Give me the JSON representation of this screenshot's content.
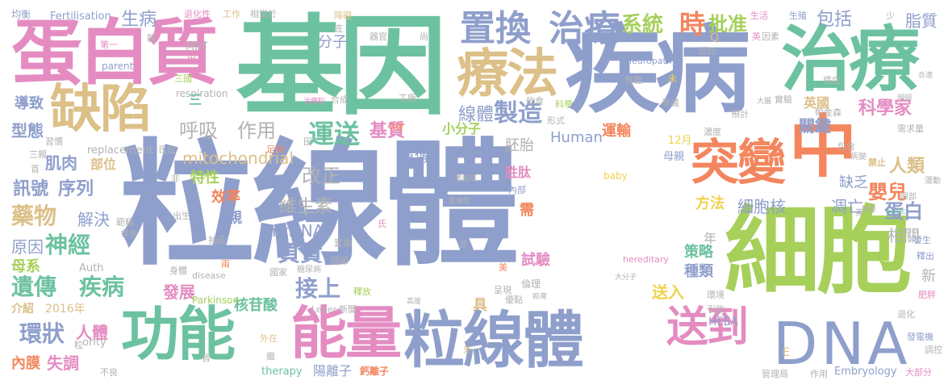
{
  "colors": {
    "blue": "#8f9fcc",
    "green": "#6cc2a0",
    "orange": "#f3865e",
    "lime": "#a6d05a",
    "pink": "#e48cc2",
    "tan": "#dcc088",
    "gold": "#f1d250",
    "grey": "#b2b2b2"
  },
  "words": [
    {
      "id": "w-main",
      "text": "粒線體"
    },
    {
      "id": "w-jiyin",
      "text": "基因"
    },
    {
      "id": "w-jibing",
      "text": "疾病"
    },
    {
      "id": "w-zhiliao-big",
      "text": "治療"
    },
    {
      "id": "w-danbaizhi",
      "text": "蛋白質"
    },
    {
      "id": "w-xibao",
      "text": "細胞"
    },
    {
      "id": "w-dna",
      "text": "DNA"
    },
    {
      "id": "w-gongneng",
      "text": "功能"
    },
    {
      "id": "w-nengliang",
      "text": "能量"
    },
    {
      "id": "w-lixianti2",
      "text": "粒線體"
    },
    {
      "id": "w-tubian",
      "text": "突變"
    },
    {
      "id": "w-zhong",
      "text": "中"
    },
    {
      "id": "w-quexian",
      "text": "缺陷"
    },
    {
      "id": "w-liaofa",
      "text": "療法"
    },
    {
      "id": "w-zhihuan",
      "text": "置換"
    },
    {
      "id": "w-zhiliao2",
      "text": "治療"
    },
    {
      "id": "w-songdao",
      "text": "送到"
    },
    {
      "id": "w-xitong",
      "text": "系統"
    },
    {
      "id": "w-shi",
      "text": "時"
    },
    {
      "id": "w-pizhun",
      "text": "批准"
    },
    {
      "id": "w-baokuo",
      "text": "包括"
    },
    {
      "id": "w-shengbing",
      "text": "生病"
    },
    {
      "id": "w-huxi",
      "text": "呼吸"
    },
    {
      "id": "w-zuoyong",
      "text": "作用"
    },
    {
      "id": "w-yunsong",
      "text": "運送"
    },
    {
      "id": "w-zhizao",
      "text": "製造"
    },
    {
      "id": "w-xianti",
      "text": "線體"
    },
    {
      "id": "w-jizhi",
      "text": "基質"
    },
    {
      "id": "w-yichuan1",
      "text": "遺傳"
    },
    {
      "id": "w-peitai",
      "text": "胚胎"
    },
    {
      "id": "w-human",
      "text": "Human"
    },
    {
      "id": "w-yunshu",
      "text": "運輸"
    },
    {
      "id": "w-kexuejia",
      "text": "科學家"
    },
    {
      "id": "w-yingguo",
      "text": "英國"
    },
    {
      "id": "w-guanjian",
      "text": "關鍵"
    },
    {
      "id": "w-renlei",
      "text": "人類"
    },
    {
      "id": "w-yinger",
      "text": "嬰兒"
    },
    {
      "id": "w-xiangguan",
      "text": "相關"
    },
    {
      "id": "w-danbai",
      "text": "蛋白"
    },
    {
      "id": "w-xibaohe",
      "text": "細胞核"
    },
    {
      "id": "w-diaowang",
      "text": "凋亡"
    },
    {
      "id": "w-mito",
      "text": "mitochondrial"
    },
    {
      "id": "w-gaizheng",
      "text": "改正"
    },
    {
      "id": "w-weishengsu",
      "text": "維生素"
    },
    {
      "id": "w-mtdna",
      "text": "mtDNA"
    },
    {
      "id": "w-fuze",
      "text": "負責"
    },
    {
      "id": "w-jieshang",
      "text": "接上"
    },
    {
      "id": "w-xunhao",
      "text": "訊號"
    },
    {
      "id": "w-xulie",
      "text": "序列"
    },
    {
      "id": "w-yaowu",
      "text": "藥物"
    },
    {
      "id": "w-jiejue",
      "text": "解決"
    },
    {
      "id": "w-yuanyin",
      "text": "原因"
    },
    {
      "id": "w-shenjing",
      "text": "神經"
    },
    {
      "id": "w-yichuan2",
      "text": "遺傳"
    },
    {
      "id": "w-jibing2",
      "text": "疾病"
    },
    {
      "id": "w-huanzhuang",
      "text": "環狀"
    },
    {
      "id": "w-renti",
      "text": "人體"
    },
    {
      "id": "w-neimo",
      "text": "內膜"
    },
    {
      "id": "w-shitiao",
      "text": "失調"
    },
    {
      "id": "w-jirou",
      "text": "肌肉"
    },
    {
      "id": "w-buwei",
      "text": "部位"
    },
    {
      "id": "w-xingtai",
      "text": "型態"
    },
    {
      "id": "w-daozhi",
      "text": "導致"
    },
    {
      "id": "w-fenzi",
      "text": "分子"
    },
    {
      "id": "w-xiaofenzi",
      "text": "小分子"
    },
    {
      "id": "w-texing",
      "text": "特性"
    },
    {
      "id": "w-xiaolv",
      "text": "效率"
    },
    {
      "id": "w-fangfa",
      "text": "方法"
    },
    {
      "id": "w-quefa",
      "text": "缺乏"
    },
    {
      "id": "w-celue",
      "text": "策略"
    },
    {
      "id": "w-zhonglei",
      "text": "種類"
    },
    {
      "id": "w-shiyan",
      "text": "試驗"
    },
    {
      "id": "w-hetaisuan",
      "text": "核苷酸"
    },
    {
      "id": "w-fazhan",
      "text": "發展"
    },
    {
      "id": "w-songru",
      "text": "送入"
    },
    {
      "id": "w-muxi",
      "text": "母系"
    },
    {
      "id": "w-zhizhi",
      "text": "脂質"
    },
    {
      "id": "w-jiuqian",
      "text": "年"
    },
    {
      "id": "w-xin",
      "text": "新"
    },
    {
      "id": "w-jieshao",
      "text": "介紹"
    },
    {
      "id": "w-2016",
      "text": "2016年"
    },
    {
      "id": "w-hfea",
      "text": "HFEA"
    },
    {
      "id": "w-juhao",
      "text": "具"
    },
    {
      "id": "w-yangrizi",
      "text": "陽離子"
    },
    {
      "id": "w-gailizi",
      "text": "鈣離子"
    },
    {
      "id": "w-therapy",
      "text": "therapy"
    },
    {
      "id": "w-embryology",
      "text": "Embryology"
    },
    {
      "id": "w-parkinson",
      "text": "Parkinson"
    },
    {
      "id": "w-leber",
      "text": "Leber"
    },
    {
      "id": "w-mrt",
      "text": "MRT"
    },
    {
      "id": "w-auth",
      "text": "Auth"
    },
    {
      "id": "w-replacement",
      "text": "replacement"
    },
    {
      "id": "w-parent",
      "text": "parent"
    },
    {
      "id": "w-respiration",
      "text": "respiration"
    },
    {
      "id": "w-fertilisation",
      "text": "Fertilisation"
    },
    {
      "id": "w-hereditary",
      "text": "hereditary"
    },
    {
      "id": "w-disease",
      "text": "disease"
    },
    {
      "id": "w-neuropathy",
      "text": "neuropathy"
    },
    {
      "id": "w-baby",
      "text": "baby"
    },
    {
      "id": "w-optic",
      "text": "optic"
    },
    {
      "id": "w-ority",
      "text": "ority"
    },
    {
      "id": "w-e",
      "text": "E"
    },
    {
      "id": "w-q",
      "text": "Q"
    },
    {
      "id": "w-12yue",
      "text": "12月"
    },
    {
      "id": "w-muqin",
      "text": "母親"
    },
    {
      "id": "w-ruzhi",
      "text": "需"
    },
    {
      "id": "w-qin",
      "text": "親"
    },
    {
      "id": "w-taitai",
      "text": "胜肽"
    },
    {
      "id": "w-neibu",
      "text": "內部"
    },
    {
      "id": "w-junheng",
      "text": "均衡"
    },
    {
      "id": "w-tuihuaxing",
      "text": "退化性"
    },
    {
      "id": "w-gongzuo",
      "text": "工作"
    },
    {
      "id": "w-xiangdangyu",
      "text": "相當於"
    },
    {
      "id": "w-zhangai",
      "text": "障礙"
    },
    {
      "id": "w-shenghuo",
      "text": "生活"
    },
    {
      "id": "w-shengzhi",
      "text": "生殖"
    },
    {
      "id": "w-shao",
      "text": "少"
    },
    {
      "id": "w-diyi",
      "text": "第一"
    },
    {
      "id": "w-qinz",
      "text": "親"
    },
    {
      "id": "w-di",
      "text": "底"
    },
    {
      "id": "w-qiguan",
      "text": "器官"
    },
    {
      "id": "w-shang",
      "text": "尚"
    },
    {
      "id": "w-yinzi",
      "text": "因子"
    },
    {
      "id": "w-yinsu",
      "text": "因素"
    },
    {
      "id": "w-renzhi",
      "text": "認知"
    },
    {
      "id": "w-youqu",
      "text": "有趣"
    },
    {
      "id": "w-ai",
      "text": "癌症"
    },
    {
      "id": "w-hehan",
      "text": "合成"
    },
    {
      "id": "w-gongchang",
      "text": "工廠"
    },
    {
      "id": "w-yinshi",
      "text": "飲食"
    },
    {
      "id": "w-kexue",
      "text": "科學"
    },
    {
      "id": "w-zhengyi",
      "text": "爭議"
    },
    {
      "id": "w-shijian",
      "text": "實驗"
    },
    {
      "id": "w-pajinsen",
      "text": "帕金森"
    },
    {
      "id": "w-xuqiuliang",
      "text": "需求量"
    },
    {
      "id": "w-jinzhi",
      "text": "禁止"
    },
    {
      "id": "w-nongdu",
      "text": "濃度"
    },
    {
      "id": "w-yuji",
      "text": "預計"
    },
    {
      "id": "w-baohan",
      "text": "包含"
    },
    {
      "id": "w-bingbian",
      "text": "病變"
    },
    {
      "id": "w-yanbu",
      "text": "眼部"
    },
    {
      "id": "w-yundong",
      "text": "運動"
    },
    {
      "id": "w-shuliang",
      "text": "數量"
    },
    {
      "id": "w-fasheng",
      "text": "發生"
    },
    {
      "id": "w-shichu",
      "text": "釋出"
    },
    {
      "id": "w-feipang",
      "text": "肥胖"
    },
    {
      "id": "w-tuihua",
      "text": "退化"
    },
    {
      "id": "w-fadianji",
      "text": "發電機"
    },
    {
      "id": "w-tiaokong",
      "text": "調控"
    },
    {
      "id": "w-dabufen",
      "text": "大部分"
    },
    {
      "id": "w-guanliju",
      "text": "管理局"
    },
    {
      "id": "w-zuoyong2",
      "text": "作用"
    },
    {
      "id": "w-huanjing",
      "text": "環境"
    },
    {
      "id": "w-yinzhi",
      "text": "引致"
    },
    {
      "id": "w-lunli",
      "text": "倫理"
    },
    {
      "id": "w-youdian",
      "text": "優點"
    },
    {
      "id": "w-chengxian",
      "text": "呈現"
    },
    {
      "id": "w-mabi",
      "text": "痲痺"
    },
    {
      "id": "w-shifang",
      "text": "釋放"
    },
    {
      "id": "w-tangniaobing",
      "text": "糖尿病"
    },
    {
      "id": "w-guojia",
      "text": "國家"
    },
    {
      "id": "w-tiaojie",
      "text": "調節"
    },
    {
      "id": "w-shenti",
      "text": "身體"
    },
    {
      "id": "w-liang",
      "text": "兩"
    },
    {
      "id": "w-chouti",
      "text": "抽茲"
    },
    {
      "id": "w-chusheng",
      "text": "出生"
    },
    {
      "id": "w-fanchou",
      "text": "範疇"
    },
    {
      "id": "w-leiqu",
      "text": "雷伯"
    },
    {
      "id": "w-xiguan",
      "text": "習慣"
    },
    {
      "id": "w-shishi",
      "text": "氏症"
    },
    {
      "id": "w-zugou",
      "text": "足夠"
    },
    {
      "id": "w-zhiliaoli",
      "text": "治療粒"
    },
    {
      "id": "w-xiaodadao",
      "text": "大腸"
    },
    {
      "id": "w-mingxi",
      "text": "明細"
    },
    {
      "id": "w-heshi",
      "text": "合適"
    },
    {
      "id": "w-buliang",
      "text": "不良"
    },
    {
      "id": "w-waizai",
      "text": "外在"
    },
    {
      "id": "w-meili",
      "text": "美"
    },
    {
      "id": "w-weisuo",
      "text": "萎縮症"
    },
    {
      "id": "w-yichuanxing",
      "text": "遺傳性"
    },
    {
      "id": "w-dafenzi",
      "text": "大分子"
    },
    {
      "id": "w-xinwen",
      "text": "新聞"
    },
    {
      "id": "w-zhijian",
      "text": "置換"
    },
    {
      "id": "w-gaoyuan",
      "text": "高度"
    },
    {
      "id": "w-tianxin",
      "text": "田"
    },
    {
      "id": "w-sanguo",
      "text": "三國"
    },
    {
      "id": "w-sansmall",
      "text": "三"
    },
    {
      "id": "w-jiazu",
      "text": "三親"
    },
    {
      "id": "w-shoudu",
      "text": "首"
    },
    {
      "id": "w-ying2",
      "text": "英"
    },
    {
      "id": "w-yingsmall",
      "text": "英"
    },
    {
      "id": "w-fei",
      "text": "非"
    },
    {
      "id": "w-wai",
      "text": "外"
    },
    {
      "id": "w-li",
      "text": "粒"
    },
    {
      "id": "w-jie",
      "text": "皆"
    },
    {
      "id": "w-ji",
      "text": "繼"
    },
    {
      "id": "w-shi2",
      "text": "氏"
    },
    {
      "id": "w-wei",
      "text": "未"
    },
    {
      "id": "w-zhi",
      "text": "質"
    },
    {
      "id": "w-erzhi",
      "text": "耳聾"
    },
    {
      "id": "w-xing",
      "text": "形式"
    }
  ]
}
